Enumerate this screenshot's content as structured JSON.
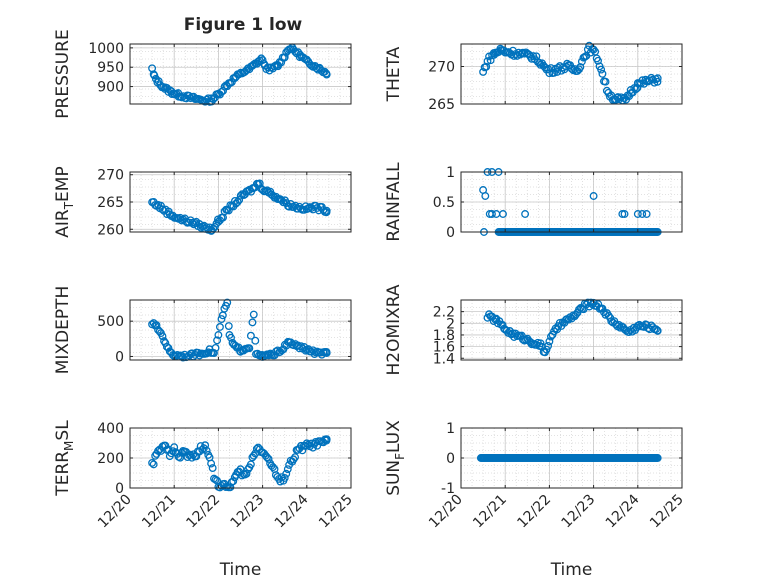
{
  "figure": {
    "title": "Figure 1 low"
  },
  "chart_data": [
    {
      "type": "scatter",
      "id": "pressure",
      "ylabel": {
        "main": "PRESSURE",
        "sub": ""
      },
      "ylim": [
        855,
        1010
      ],
      "yticks": [
        900,
        950,
        1000
      ],
      "xlim": [
        0,
        5
      ],
      "xticks": [
        0,
        1,
        2,
        3,
        4,
        5
      ],
      "xticklabels": [
        "12/20",
        "12/21",
        "12/22",
        "12/23",
        "12/24",
        "12/25"
      ],
      "xlabel": "",
      "show_xticklabels": false,
      "grid": true,
      "keypoints": [
        [
          0.5,
          945
        ],
        [
          0.55,
          925
        ],
        [
          0.65,
          910
        ],
        [
          0.8,
          895
        ],
        [
          0.95,
          885
        ],
        [
          1.1,
          878
        ],
        [
          1.3,
          873
        ],
        [
          1.5,
          868
        ],
        [
          1.7,
          864
        ],
        [
          1.85,
          866
        ],
        [
          2.0,
          880
        ],
        [
          2.2,
          905
        ],
        [
          2.4,
          925
        ],
        [
          2.6,
          940
        ],
        [
          2.7,
          945
        ],
        [
          2.8,
          955
        ],
        [
          2.9,
          965
        ],
        [
          3.0,
          972
        ],
        [
          3.05,
          950
        ],
        [
          3.2,
          945
        ],
        [
          3.35,
          955
        ],
        [
          3.5,
          980
        ],
        [
          3.6,
          1000
        ],
        [
          3.7,
          995
        ],
        [
          3.85,
          980
        ],
        [
          4.0,
          965
        ],
        [
          4.15,
          955
        ],
        [
          4.3,
          945
        ],
        [
          4.45,
          935
        ]
      ],
      "noise": 5
    },
    {
      "type": "scatter",
      "id": "theta",
      "ylabel": {
        "main": "THETA",
        "sub": ""
      },
      "ylim": [
        265,
        273
      ],
      "yticks": [
        265,
        270
      ],
      "xlim": [
        0,
        5
      ],
      "xticks": [
        0,
        1,
        2,
        3,
        4,
        5
      ],
      "xticklabels": [
        "12/20",
        "12/21",
        "12/22",
        "12/23",
        "12/24",
        "12/25"
      ],
      "xlabel": "",
      "show_xticklabels": false,
      "grid": true,
      "keypoints": [
        [
          0.5,
          269.2
        ],
        [
          0.6,
          270.8
        ],
        [
          0.75,
          271.7
        ],
        [
          0.9,
          272.2
        ],
        [
          1.0,
          272.0
        ],
        [
          1.2,
          271.8
        ],
        [
          1.4,
          271.6
        ],
        [
          1.6,
          271.4
        ],
        [
          1.8,
          270.6
        ],
        [
          1.9,
          269.8
        ],
        [
          2.0,
          269.4
        ],
        [
          2.2,
          269.7
        ],
        [
          2.4,
          270.0
        ],
        [
          2.6,
          269.5
        ],
        [
          2.7,
          270.2
        ],
        [
          2.8,
          271.5
        ],
        [
          2.9,
          272.4
        ],
        [
          3.0,
          272.0
        ],
        [
          3.1,
          271.0
        ],
        [
          3.2,
          269.0
        ],
        [
          3.3,
          267.0
        ],
        [
          3.4,
          266.0
        ],
        [
          3.55,
          265.6
        ],
        [
          3.7,
          265.5
        ],
        [
          3.85,
          266.7
        ],
        [
          4.0,
          267.6
        ],
        [
          4.2,
          268.0
        ],
        [
          4.45,
          268.3
        ]
      ],
      "noise": 0.4
    },
    {
      "type": "scatter",
      "id": "air_temp",
      "ylabel": {
        "main": "AIR",
        "sub": "T",
        "rest": "EMP"
      },
      "ylim": [
        259.5,
        270.5
      ],
      "yticks": [
        260,
        265,
        270
      ],
      "xlim": [
        0,
        5
      ],
      "xticks": [
        0,
        1,
        2,
        3,
        4,
        5
      ],
      "xticklabels": [
        "12/20",
        "12/21",
        "12/22",
        "12/23",
        "12/24",
        "12/25"
      ],
      "xlabel": "",
      "show_xticklabels": false,
      "grid": true,
      "keypoints": [
        [
          0.5,
          265.0
        ],
        [
          0.7,
          264.0
        ],
        [
          0.9,
          262.8
        ],
        [
          1.1,
          262.0
        ],
        [
          1.3,
          261.5
        ],
        [
          1.5,
          261.0
        ],
        [
          1.7,
          260.3
        ],
        [
          1.85,
          260.0
        ],
        [
          2.0,
          261.5
        ],
        [
          2.2,
          263.5
        ],
        [
          2.4,
          265.0
        ],
        [
          2.6,
          266.5
        ],
        [
          2.8,
          267.5
        ],
        [
          2.9,
          268.5
        ],
        [
          3.0,
          267.5
        ],
        [
          3.2,
          266.5
        ],
        [
          3.4,
          265.5
        ],
        [
          3.6,
          264.5
        ],
        [
          3.8,
          264.0
        ],
        [
          4.0,
          263.8
        ],
        [
          4.2,
          264.0
        ],
        [
          4.45,
          263.5
        ]
      ],
      "noise": 0.4
    },
    {
      "type": "scatter",
      "id": "rainfall",
      "ylabel": {
        "main": "RAINFALL",
        "sub": ""
      },
      "ylim": [
        0,
        1
      ],
      "yticks": [
        0,
        0.5,
        1
      ],
      "xlim": [
        0,
        5
      ],
      "xticks": [
        0,
        1,
        2,
        3,
        4,
        5
      ],
      "xticklabels": [
        "12/20",
        "12/21",
        "12/22",
        "12/23",
        "12/24",
        "12/25"
      ],
      "xlabel": "",
      "show_xticklabels": false,
      "grid": true,
      "baseline": {
        "x": [
          0.85,
          4.45
        ],
        "y": 0
      },
      "extra_points": [
        [
          0.5,
          0.7
        ],
        [
          0.55,
          0.6
        ],
        [
          0.6,
          1.0
        ],
        [
          0.7,
          1.0
        ],
        [
          0.85,
          1.0
        ],
        [
          0.65,
          0.3
        ],
        [
          0.7,
          0.3
        ],
        [
          0.8,
          0.3
        ],
        [
          0.95,
          0.3
        ],
        [
          3.0,
          0.6
        ],
        [
          3.65,
          0.3
        ],
        [
          3.7,
          0.3
        ],
        [
          4.0,
          0.3
        ],
        [
          4.1,
          0.3
        ],
        [
          4.2,
          0.3
        ],
        [
          0.52,
          0
        ],
        [
          1.45,
          0.3
        ],
        [
          1.05,
          0
        ],
        [
          1.0,
          0
        ]
      ]
    },
    {
      "type": "scatter",
      "id": "mixdepth",
      "ylabel": {
        "main": "MIXDEPTH",
        "sub": ""
      },
      "ylim": [
        -50,
        800
      ],
      "yticks": [
        0,
        500
      ],
      "xlim": [
        0,
        5
      ],
      "xticks": [
        0,
        1,
        2,
        3,
        4,
        5
      ],
      "xticklabels": [
        "12/20",
        "12/21",
        "12/22",
        "12/23",
        "12/24",
        "12/25"
      ],
      "xlabel": "",
      "show_xticklabels": false,
      "grid": true,
      "keypoints": [
        [
          0.5,
          470
        ],
        [
          0.6,
          420
        ],
        [
          0.7,
          330
        ],
        [
          0.8,
          200
        ],
        [
          0.9,
          60
        ],
        [
          1.0,
          20
        ],
        [
          1.2,
          10
        ],
        [
          1.4,
          20
        ],
        [
          1.6,
          40
        ],
        [
          1.8,
          80
        ],
        [
          1.9,
          40
        ],
        [
          2.0,
          300
        ],
        [
          2.1,
          600
        ],
        [
          2.2,
          750
        ],
        [
          2.25,
          300
        ],
        [
          2.35,
          150
        ],
        [
          2.5,
          90
        ],
        [
          2.6,
          110
        ],
        [
          2.7,
          140
        ],
        [
          2.8,
          600
        ],
        [
          2.85,
          30
        ],
        [
          3.0,
          5
        ],
        [
          3.2,
          20
        ],
        [
          3.4,
          80
        ],
        [
          3.6,
          200
        ],
        [
          3.8,
          140
        ],
        [
          4.0,
          100
        ],
        [
          4.2,
          50
        ],
        [
          4.45,
          40
        ]
      ],
      "noise": 25
    },
    {
      "type": "scatter",
      "id": "h2omixra",
      "ylabel": {
        "main": "H2OMIXRA",
        "sub": ""
      },
      "ylim": [
        1.37,
        2.4
      ],
      "yticks": [
        1.4,
        1.6,
        1.8,
        2.0,
        2.2
      ],
      "yticklabels": [
        "1.4",
        "1.6",
        "1.8",
        "2",
        "2.2"
      ],
      "xlim": [
        0,
        5
      ],
      "xticks": [
        0,
        1,
        2,
        3,
        4,
        5
      ],
      "xticklabels": [
        "12/20",
        "12/21",
        "12/22",
        "12/23",
        "12/24",
        "12/25"
      ],
      "xlabel": "",
      "show_xticklabels": false,
      "grid": true,
      "keypoints": [
        [
          0.6,
          2.13
        ],
        [
          0.8,
          2.05
        ],
        [
          1.0,
          1.9
        ],
        [
          1.2,
          1.8
        ],
        [
          1.4,
          1.75
        ],
        [
          1.6,
          1.68
        ],
        [
          1.8,
          1.62
        ],
        [
          1.9,
          1.5
        ],
        [
          2.0,
          1.7
        ],
        [
          2.2,
          1.95
        ],
        [
          2.4,
          2.05
        ],
        [
          2.6,
          2.15
        ],
        [
          2.8,
          2.3
        ],
        [
          3.0,
          2.35
        ],
        [
          3.2,
          2.25
        ],
        [
          3.4,
          2.05
        ],
        [
          3.6,
          1.95
        ],
        [
          3.8,
          1.85
        ],
        [
          4.0,
          1.95
        ],
        [
          4.2,
          1.95
        ],
        [
          4.45,
          1.9
        ]
      ],
      "noise": 0.04
    },
    {
      "type": "scatter",
      "id": "terr_msl",
      "ylabel": {
        "main": "TERR",
        "sub": "M",
        "rest": "SL"
      },
      "ylim": [
        0,
        400
      ],
      "yticks": [
        0,
        200,
        400
      ],
      "xlim": [
        0,
        5
      ],
      "xticks": [
        0,
        1,
        2,
        3,
        4,
        5
      ],
      "xticklabels": [
        "12/20",
        "12/21",
        "12/22",
        "12/23",
        "12/24",
        "12/25"
      ],
      "xlabel": "Time",
      "show_xticklabels": true,
      "grid": true,
      "keypoints": [
        [
          0.5,
          150
        ],
        [
          0.6,
          220
        ],
        [
          0.7,
          260
        ],
        [
          0.8,
          270
        ],
        [
          0.9,
          230
        ],
        [
          1.0,
          280
        ],
        [
          1.1,
          190
        ],
        [
          1.2,
          250
        ],
        [
          1.3,
          220
        ],
        [
          1.4,
          200
        ],
        [
          1.5,
          230
        ],
        [
          1.6,
          260
        ],
        [
          1.7,
          270
        ],
        [
          1.8,
          220
        ],
        [
          1.9,
          80
        ],
        [
          2.0,
          20
        ],
        [
          2.1,
          10
        ],
        [
          2.2,
          5
        ],
        [
          2.3,
          30
        ],
        [
          2.4,
          80
        ],
        [
          2.5,
          110
        ],
        [
          2.6,
          80
        ],
        [
          2.7,
          130
        ],
        [
          2.8,
          230
        ],
        [
          2.9,
          270
        ],
        [
          3.0,
          250
        ],
        [
          3.1,
          200
        ],
        [
          3.2,
          160
        ],
        [
          3.3,
          90
        ],
        [
          3.4,
          40
        ],
        [
          3.5,
          80
        ],
        [
          3.6,
          150
        ],
        [
          3.7,
          200
        ],
        [
          3.8,
          250
        ],
        [
          3.9,
          270
        ],
        [
          4.0,
          280
        ],
        [
          4.2,
          290
        ],
        [
          4.45,
          310
        ]
      ],
      "noise": 20
    },
    {
      "type": "scatter",
      "id": "sun_flux",
      "ylabel": {
        "main": "SUN",
        "sub": "F",
        "rest": "LUX"
      },
      "ylim": [
        -1,
        1
      ],
      "yticks": [
        -1,
        0,
        1
      ],
      "xlim": [
        0,
        5
      ],
      "xticks": [
        0,
        1,
        2,
        3,
        4,
        5
      ],
      "xticklabels": [
        "12/20",
        "12/21",
        "12/22",
        "12/23",
        "12/24",
        "12/25"
      ],
      "xlabel": "Time",
      "show_xticklabels": true,
      "grid": true,
      "baseline": {
        "x": [
          0.45,
          4.45
        ],
        "y": 0
      }
    }
  ],
  "style": {
    "marker_color": "#0072BD",
    "axis_color": "#262626",
    "grid_color": "#d9d9d9"
  }
}
